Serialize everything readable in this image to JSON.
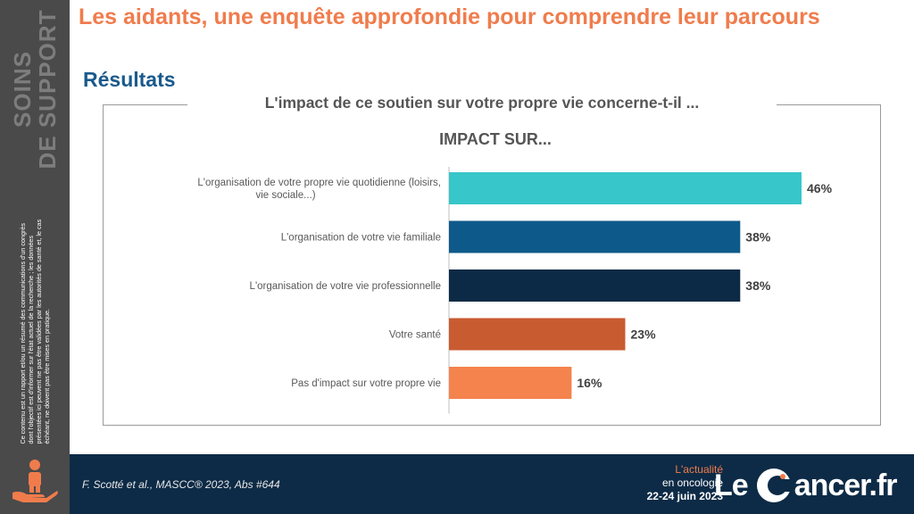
{
  "sidebar": {
    "title_line1": "SOINS",
    "title_line2": "DE SUPPORT",
    "disclaimer": "Ce contenu est un rapport et/ou un résumé des communications d'un congrès dont l'objectif est d'informer sur l'état actuel de la recherche ; les données présentées ici peuvent ne pas être validées par les autorités de santé et, le cas échéant, ne doivent pas être mises en pratique.",
    "icon": "caregiver-hand-icon"
  },
  "header": {
    "title": "Les aidants, une enquête approfondie pour comprendre leur parcours",
    "subtitle": "Résultats"
  },
  "chart_data": {
    "type": "bar",
    "orientation": "horizontal",
    "title": "L'impact de ce soutien sur votre propre vie concerne-t-il ...",
    "subtitle": "IMPACT SUR...",
    "categories": [
      "L'organisation de votre propre vie quotidienne (loisirs, vie sociale...)",
      "L'organisation de votre vie familiale",
      "L'organisation de votre vie professionnelle",
      "Votre santé",
      "Pas d'impact sur votre propre vie"
    ],
    "values": [
      46,
      38,
      38,
      23,
      16
    ],
    "value_labels": [
      "46%",
      "38%",
      "38%",
      "23%",
      "16%"
    ],
    "unit": "%",
    "colors": [
      "#37c6c9",
      "#0d5a8a",
      "#0c2a45",
      "#c95b31",
      "#f4834e"
    ],
    "xlim": [
      0,
      46
    ],
    "grid": false,
    "legend": "none"
  },
  "footer": {
    "citation": "F. Scotté et al., MASCC® 2023, Abs #644",
    "event_line1": "L'actualité",
    "event_line2": "en oncologie",
    "event_dates": "22-24 juin 2023",
    "logo_left": "Le",
    "logo_right": "ancer.fr"
  },
  "colors": {
    "accent": "#f07c4c",
    "subtitle": "#1a5a8c",
    "sidebar": "#4a4a4a",
    "footer": "#0d2b46"
  }
}
